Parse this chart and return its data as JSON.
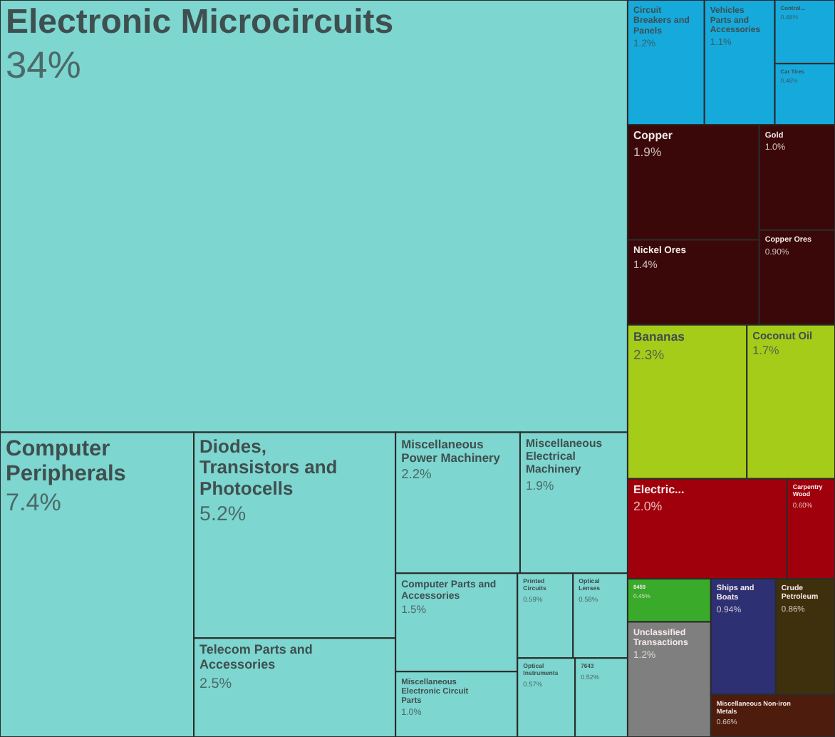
{
  "chart_data": {
    "type": "other",
    "categories": [
      "Electronic Microcircuits",
      "Computer Peripherals",
      "Diodes, Transistors and Photocells",
      "Telecom Parts and Accessories",
      "Miscellaneous Power Machinery",
      "Miscellaneous Electrical Machinery",
      "Computer Parts and Accessories",
      "Miscellaneous Electronic Circuit Parts",
      "Printed Circuits",
      "Optical Lenses",
      "Optical Instruments",
      "7643",
      "Circuit Breakers and Panels",
      "Vehicles Parts and Accessories",
      "Control...",
      "Car Tires",
      "Copper",
      "Nickel Ores",
      "Gold",
      "Copper Ores",
      "Bananas",
      "Coconut Oil",
      "Electric...",
      "Carpentry Wood",
      "8459",
      "Unclassified Transactions",
      "Ships and Boats",
      "Crude Petroleum",
      "Miscellaneous Non-iron Metals"
    ],
    "values": [
      34,
      7.4,
      5.2,
      2.5,
      2.2,
      1.9,
      1.5,
      1.0,
      0.59,
      0.58,
      0.57,
      0.52,
      1.2,
      1.1,
      0.48,
      0.46,
      1.9,
      1.4,
      1.0,
      0.9,
      2.3,
      1.7,
      2.0,
      0.6,
      0.45,
      1.2,
      0.94,
      0.86,
      0.66
    ],
    "value_labels": [
      "34%",
      "7.4%",
      "5.2%",
      "2.5%",
      "2.2%",
      "1.9%",
      "1.5%",
      "1.0%",
      "0.59%",
      "0.58%",
      "0.57%",
      "0.52%",
      "1.2%",
      "1.1%",
      "0.48%",
      "0.46%",
      "1.9%",
      "1.4%",
      "1.0%",
      "0.90%",
      "2.3%",
      "1.7%",
      "2.0%",
      "0.60%",
      "0.45%",
      "1.2%",
      "0.94%",
      "0.86%",
      "0.66%"
    ],
    "colors": [
      "#7dd6cf",
      "#7dd6cf",
      "#7dd6cf",
      "#7dd6cf",
      "#7dd6cf",
      "#7dd6cf",
      "#7dd6cf",
      "#7dd6cf",
      "#7dd6cf",
      "#7dd6cf",
      "#7dd6cf",
      "#7dd6cf",
      "#16a9dc",
      "#16a9dc",
      "#16a9dc",
      "#16a9dc",
      "#3a0808",
      "#3a0808",
      "#3a0808",
      "#3a0808",
      "#a6cc1a",
      "#a6cc1a",
      "#a0000c",
      "#a0000c",
      "#3aaa2a",
      "#7f7f7f",
      "#2e3074",
      "#3e300c",
      "#4e1c0c"
    ]
  }
}
